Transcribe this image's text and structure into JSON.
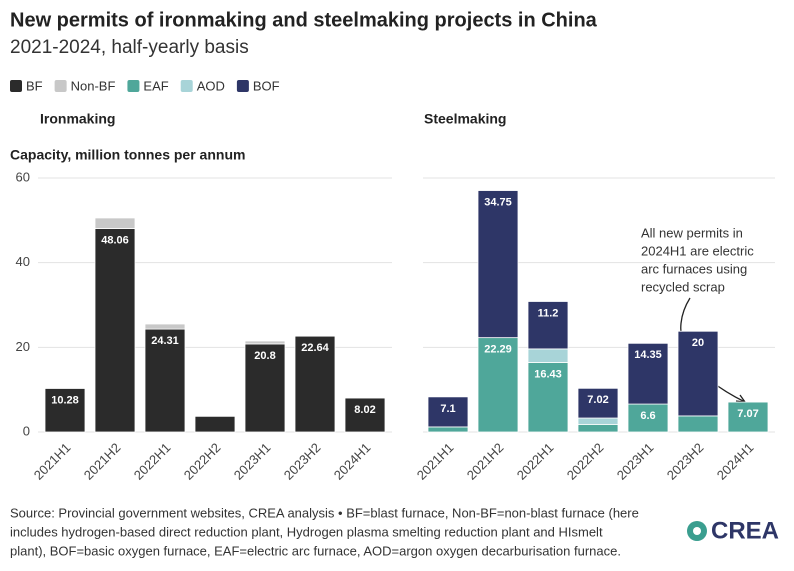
{
  "title": "New permits of ironmaking and steelmaking projects in China",
  "subtitle": "2021-2024, half-yearly basis",
  "source": [
    "Source: Provincial government websites, CREA analysis • BF=blast furnace, Non-BF=non-blast furnace (here",
    "includes hydrogen-based direct reduction plant, Hydrogen plasma smelting reduction plant and HIsmelt",
    "plant), BOF=basic oxygen furnace, EAF=electric arc furnace, AOD=argon oxygen decarburisation furnace."
  ],
  "logo": "CREA",
  "chart_data": [
    {
      "type": "stacked_bar",
      "title": "Ironmaking",
      "y_label": "Capacity, million tonnes per annum",
      "categories": [
        "2021H1",
        "2021H2",
        "2022H1",
        "2022H2",
        "2023H1",
        "2023H2",
        "2024H1"
      ],
      "series": [
        {
          "name": "BF",
          "color": "#2b2b2b",
          "values": [
            10.28,
            48.06,
            24.31,
            3.7,
            20.8,
            22.64,
            8.02
          ]
        },
        {
          "name": "Non-BF",
          "color": "#c8c8c8",
          "values": [
            0,
            2.5,
            1.2,
            0,
            0.7,
            0,
            0
          ]
        }
      ],
      "ylim": [
        0,
        60
      ],
      "yticks": [
        0,
        20,
        40,
        60
      ],
      "show_ytick_labels": true,
      "grid": true
    },
    {
      "type": "stacked_bar",
      "title": "Steelmaking",
      "categories": [
        "2021H1",
        "2021H2",
        "2022H1",
        "2022H2",
        "2023H1",
        "2023H2",
        "2024H1"
      ],
      "series": [
        {
          "name": "EAF",
          "color": "#4fa79a",
          "values": [
            1.2,
            22.29,
            16.43,
            1.8,
            6.6,
            3.8,
            7.07
          ]
        },
        {
          "name": "AOD",
          "color": "#a8d4d8",
          "values": [
            0,
            0,
            3.2,
            1.5,
            0,
            0,
            0
          ]
        },
        {
          "name": "BOF",
          "color": "#2e3667",
          "values": [
            7.1,
            34.75,
            11.2,
            7.02,
            14.35,
            20,
            0
          ]
        }
      ],
      "ylim": [
        0,
        60
      ],
      "yticks": [
        0,
        20,
        40,
        60
      ],
      "show_ytick_labels": false,
      "grid": true,
      "annotation": [
        "All new permits in",
        "2024H1 are electric",
        "arc furnaces using",
        "recycled scrap"
      ]
    }
  ]
}
